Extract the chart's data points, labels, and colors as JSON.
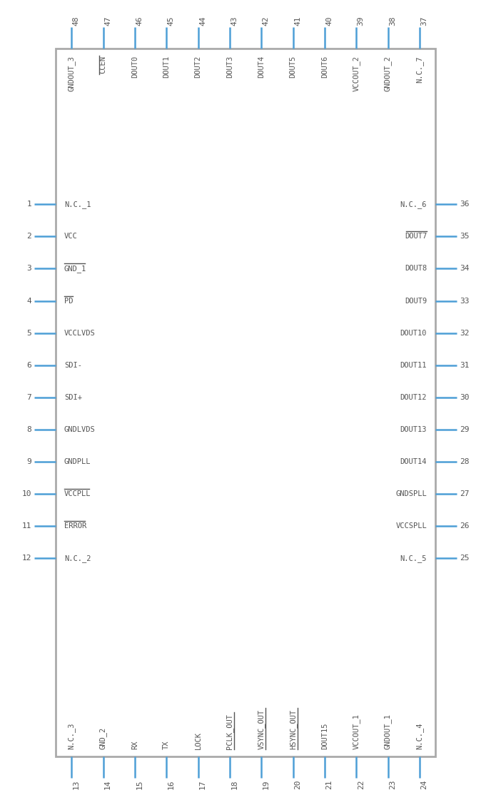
{
  "bg_color": "#ffffff",
  "body_edge_color": "#aaaaaa",
  "pin_color": "#4d9fd6",
  "text_color": "#555555",
  "top_pins": [
    {
      "num": "48",
      "name": "GNDOUT_3",
      "overline": false
    },
    {
      "num": "47",
      "name": "CCEN",
      "overline": true
    },
    {
      "num": "46",
      "name": "DOUT0",
      "overline": false
    },
    {
      "num": "45",
      "name": "DOUT1",
      "overline": false
    },
    {
      "num": "44",
      "name": "DOUT2",
      "overline": false
    },
    {
      "num": "43",
      "name": "DOUT3",
      "overline": false
    },
    {
      "num": "42",
      "name": "DOUT4",
      "overline": false
    },
    {
      "num": "41",
      "name": "DOUT5",
      "overline": false
    },
    {
      "num": "40",
      "name": "DOUT6",
      "overline": false
    },
    {
      "num": "39",
      "name": "VCCOUT_2",
      "overline": false
    },
    {
      "num": "38",
      "name": "GNDOUT_2",
      "overline": false
    },
    {
      "num": "37",
      "name": "N.C._7",
      "overline": false
    }
  ],
  "bottom_pins": [
    {
      "num": "13",
      "name": "N.C._3",
      "overline": false
    },
    {
      "num": "14",
      "name": "GND_2",
      "overline": false
    },
    {
      "num": "15",
      "name": "RX",
      "overline": false
    },
    {
      "num": "16",
      "name": "TX",
      "overline": false
    },
    {
      "num": "17",
      "name": "LOCK",
      "overline": false
    },
    {
      "num": "18",
      "name": "PCLK_OUT",
      "overline": true
    },
    {
      "num": "19",
      "name": "VSYNC_OUT",
      "overline": true
    },
    {
      "num": "20",
      "name": "HSYNC_OUT",
      "overline": true
    },
    {
      "num": "21",
      "name": "DOUT15",
      "overline": false
    },
    {
      "num": "22",
      "name": "VCCOUT_1",
      "overline": false
    },
    {
      "num": "23",
      "name": "GNDOUT_1",
      "overline": false
    },
    {
      "num": "24",
      "name": "N.C._4",
      "overline": false
    }
  ],
  "left_pins": [
    {
      "num": "1",
      "name": "N.C._1",
      "overline": false
    },
    {
      "num": "2",
      "name": "VCC",
      "overline": false
    },
    {
      "num": "3",
      "name": "GND_1",
      "overline": true
    },
    {
      "num": "4",
      "name": "PD",
      "overline": true
    },
    {
      "num": "5",
      "name": "VCCLVDS",
      "overline": false
    },
    {
      "num": "6",
      "name": "SDI-",
      "overline": false
    },
    {
      "num": "7",
      "name": "SDI+",
      "overline": false
    },
    {
      "num": "8",
      "name": "GNDLVDS",
      "overline": false
    },
    {
      "num": "9",
      "name": "GNDPLL",
      "overline": false
    },
    {
      "num": "10",
      "name": "VCCPLL",
      "overline": true
    },
    {
      "num": "11",
      "name": "ERROR",
      "overline": true
    },
    {
      "num": "12",
      "name": "N.C._2",
      "overline": false
    }
  ],
  "right_pins": [
    {
      "num": "36",
      "name": "N.C._6",
      "overline": false
    },
    {
      "num": "35",
      "name": "DOUT7",
      "overline": true
    },
    {
      "num": "34",
      "name": "DOUT8",
      "overline": false
    },
    {
      "num": "33",
      "name": "DOUT9",
      "overline": false
    },
    {
      "num": "32",
      "name": "DOUT10",
      "overline": false
    },
    {
      "num": "31",
      "name": "DOUT11",
      "overline": false
    },
    {
      "num": "30",
      "name": "DOUT12",
      "overline": false
    },
    {
      "num": "29",
      "name": "DOUT13",
      "overline": false
    },
    {
      "num": "28",
      "name": "DOUT14",
      "overline": false
    },
    {
      "num": "27",
      "name": "GNDSPLL",
      "overline": false
    },
    {
      "num": "26",
      "name": "VCCSPLL",
      "overline": false
    },
    {
      "num": "25",
      "name": "N.C._5",
      "overline": false
    }
  ]
}
